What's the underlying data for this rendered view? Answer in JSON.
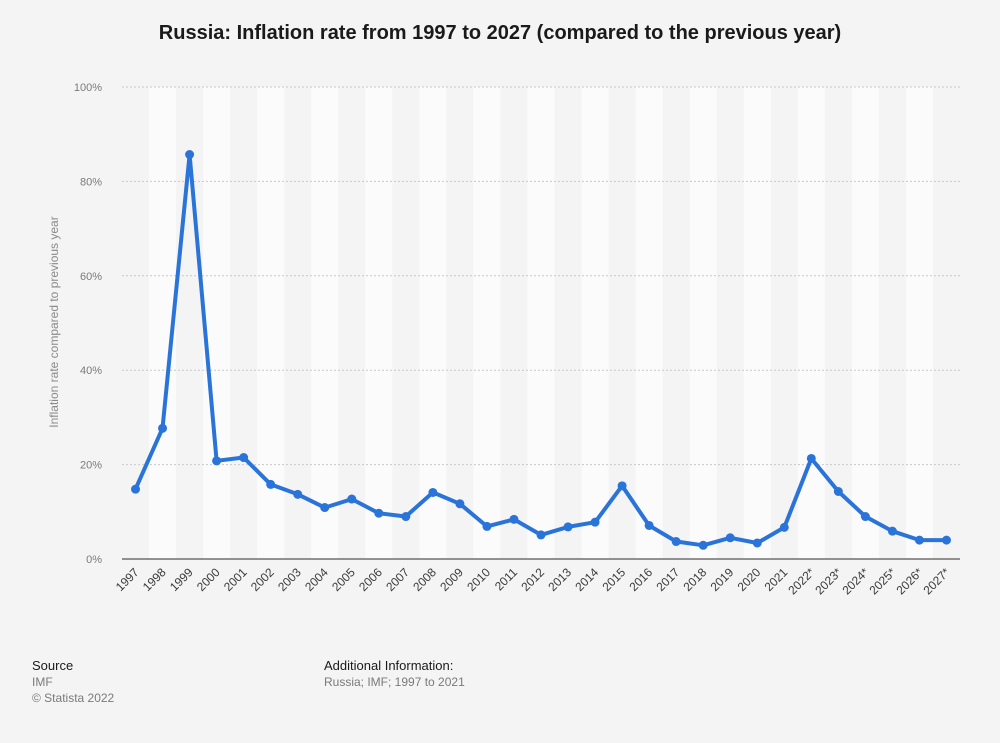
{
  "chart_data": {
    "type": "line",
    "title": "Russia: Inflation rate from 1997 to 2027 (compared to the previous year)",
    "ylabel": "Inflation rate compared to previous year",
    "xlabel": "",
    "ylim": [
      0,
      100
    ],
    "y_ticks": [
      "0%",
      "20%",
      "40%",
      "60%",
      "80%",
      "100%"
    ],
    "y_tick_values": [
      0,
      20,
      40,
      60,
      80,
      100
    ],
    "grid": true,
    "categories": [
      "1997",
      "1998",
      "1999",
      "2000",
      "2001",
      "2002",
      "2003",
      "2004",
      "2005",
      "2006",
      "2007",
      "2008",
      "2009",
      "2010",
      "2011",
      "2012",
      "2013",
      "2014",
      "2015",
      "2016",
      "2017",
      "2018",
      "2019",
      "2020",
      "2021",
      "2022*",
      "2023*",
      "2024*",
      "2025*",
      "2026*",
      "2027*"
    ],
    "series": [
      {
        "values": [
          14.8,
          27.7,
          85.7,
          20.8,
          21.5,
          15.8,
          13.7,
          10.9,
          12.7,
          9.7,
          9.0,
          14.1,
          11.7,
          6.9,
          8.4,
          5.1,
          6.8,
          7.8,
          15.5,
          7.1,
          3.7,
          2.9,
          4.5,
          3.4,
          6.7,
          21.3,
          14.3,
          9.0,
          5.9,
          4.0,
          4.0
        ],
        "color": "#2a74d9"
      }
    ]
  },
  "footer": {
    "source_heading": "Source",
    "source_name": "IMF",
    "copyright": "© Statista 2022",
    "additional_heading": "Additional Information:",
    "additional_text": "Russia; IMF; 1997 to 2021"
  }
}
